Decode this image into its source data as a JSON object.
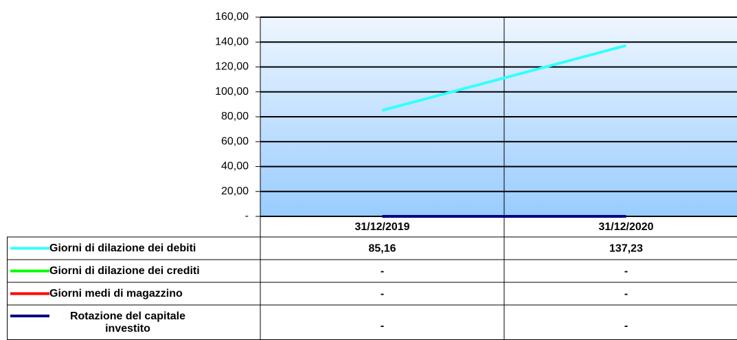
{
  "chart_data": {
    "type": "line",
    "categories": [
      "31/12/2019",
      "31/12/2020"
    ],
    "series": [
      {
        "name": "Giorni di dilazione dei debiti",
        "color": "#33ffff",
        "values": [
          85.16,
          137.23
        ],
        "value_labels": [
          "85,16",
          "137,23"
        ]
      },
      {
        "name": "Giorni di dilazione dei crediti",
        "color": "#00ff00",
        "values": [
          0,
          0
        ],
        "value_labels": [
          "-",
          "-"
        ]
      },
      {
        "name": "Giorni medi di magazzino",
        "color": "#ff0000",
        "values": [
          0,
          0
        ],
        "value_labels": [
          "-",
          "-"
        ]
      },
      {
        "name": "Rotazione del capitale investito",
        "color": "#000080",
        "values": [
          0,
          0
        ],
        "value_labels": [
          "-",
          "-"
        ]
      }
    ],
    "ylim": [
      0,
      160
    ],
    "yticks": [
      {
        "value": 0,
        "label": "-"
      },
      {
        "value": 20,
        "label": "20,00"
      },
      {
        "value": 40,
        "label": "40,00"
      },
      {
        "value": 60,
        "label": "60,00"
      },
      {
        "value": 80,
        "label": "80,00"
      },
      {
        "value": 100,
        "label": "100,00"
      },
      {
        "value": 120,
        "label": "120,00"
      },
      {
        "value": 140,
        "label": "140,00"
      },
      {
        "value": 160,
        "label": "160,00"
      }
    ],
    "grid": true,
    "data_table": true
  }
}
